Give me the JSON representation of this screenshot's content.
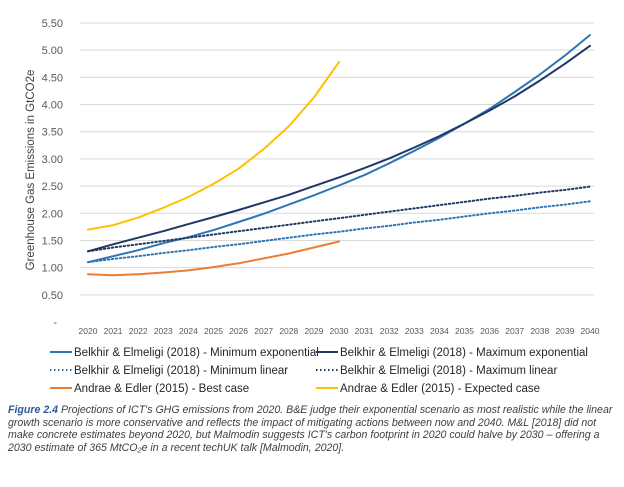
{
  "chart_data": {
    "type": "line",
    "title": "",
    "xlabel": "",
    "ylabel": "Greenhouse Gas Emissions in GtCO2e",
    "ylim": [
      0,
      5.5
    ],
    "yticks": [
      {
        "value": 0.5,
        "label": "0.50"
      },
      {
        "value": 1.0,
        "label": "1.00"
      },
      {
        "value": 1.5,
        "label": "1.50"
      },
      {
        "value": 2.0,
        "label": "2.00"
      },
      {
        "value": 2.5,
        "label": "2.50"
      },
      {
        "value": 3.0,
        "label": "3.00"
      },
      {
        "value": 3.5,
        "label": "3.50"
      },
      {
        "value": 4.0,
        "label": "4.00"
      },
      {
        "value": 4.5,
        "label": "4.50"
      },
      {
        "value": 5.0,
        "label": "5.00"
      },
      {
        "value": 5.5,
        "label": "5.50"
      }
    ],
    "y_zero_label": "-",
    "x": [
      "2020",
      "2021",
      "2022",
      "2023",
      "2024",
      "2025",
      "2026",
      "2027",
      "2028",
      "2029",
      "2030",
      "2031",
      "2032",
      "2033",
      "2034",
      "2035",
      "2036",
      "2037",
      "2038",
      "2039",
      "2040"
    ],
    "legend_position": "bottom",
    "series": [
      {
        "name": "Belkhir & Elmeligi (2018) - Minimum exponential",
        "color": "#2e75b6",
        "dash": "solid",
        "values": [
          1.1,
          1.21,
          1.32,
          1.45,
          1.56,
          1.69,
          1.84,
          1.99,
          2.16,
          2.33,
          2.51,
          2.7,
          2.92,
          3.15,
          3.39,
          3.65,
          3.92,
          4.23,
          4.55,
          4.9,
          5.28
        ]
      },
      {
        "name": "Belkhir & Elmeligi (2018) - Maximum exponential",
        "color": "#1f3864",
        "dash": "solid",
        "values": [
          1.3,
          1.43,
          1.55,
          1.67,
          1.8,
          1.93,
          2.06,
          2.2,
          2.34,
          2.5,
          2.66,
          2.83,
          3.01,
          3.21,
          3.42,
          3.65,
          3.89,
          4.15,
          4.44,
          4.75,
          5.08
        ]
      },
      {
        "name": "Belkhir & Elmeligi (2018) - Minimum linear",
        "color": "#2e75b6",
        "dash": "dotted",
        "values": [
          1.1,
          1.16,
          1.21,
          1.27,
          1.32,
          1.38,
          1.43,
          1.49,
          1.55,
          1.61,
          1.66,
          1.72,
          1.77,
          1.83,
          1.88,
          1.94,
          2.0,
          2.05,
          2.11,
          2.16,
          2.22
        ]
      },
      {
        "name": "Belkhir & Elmeligi (2018) - Maximum linear",
        "color": "#1f3864",
        "dash": "dotted",
        "values": [
          1.3,
          1.37,
          1.43,
          1.49,
          1.55,
          1.61,
          1.67,
          1.73,
          1.79,
          1.85,
          1.91,
          1.97,
          2.03,
          2.09,
          2.15,
          2.21,
          2.27,
          2.32,
          2.38,
          2.43,
          2.49
        ]
      },
      {
        "name": "Andrae & Edler (2015) - Best case",
        "color": "#ed7d31",
        "dash": "solid",
        "values": [
          0.88,
          0.86,
          0.88,
          0.91,
          0.95,
          1.01,
          1.08,
          1.17,
          1.26,
          1.37,
          1.48,
          null,
          null,
          null,
          null,
          null,
          null,
          null,
          null,
          null,
          null
        ]
      },
      {
        "name": "Andrae & Edler (2015) - Expected case",
        "color": "#ffc000",
        "dash": "solid",
        "values": [
          1.7,
          1.78,
          1.92,
          2.1,
          2.3,
          2.54,
          2.82,
          3.18,
          3.6,
          4.13,
          4.78,
          null,
          null,
          null,
          null,
          null,
          null,
          null,
          null,
          null,
          null
        ]
      }
    ]
  },
  "caption": {
    "lead": "Figure 2.4",
    "text": " Projections of ICT's GHG emissions from 2020. B&E judge their exponential scenario as most realistic while the linear growth scenario is more conservative and reflects the impact of mitigating actions between now and 2040. M&L [2018] did not make concrete estimates beyond 2020, but Malmodin suggests ICT's carbon footprint in 2020 could halve by 2030 – offering a 2030 estimate of 365 MtCO₂e in a recent techUK talk [Malmodin, 2020]."
  }
}
